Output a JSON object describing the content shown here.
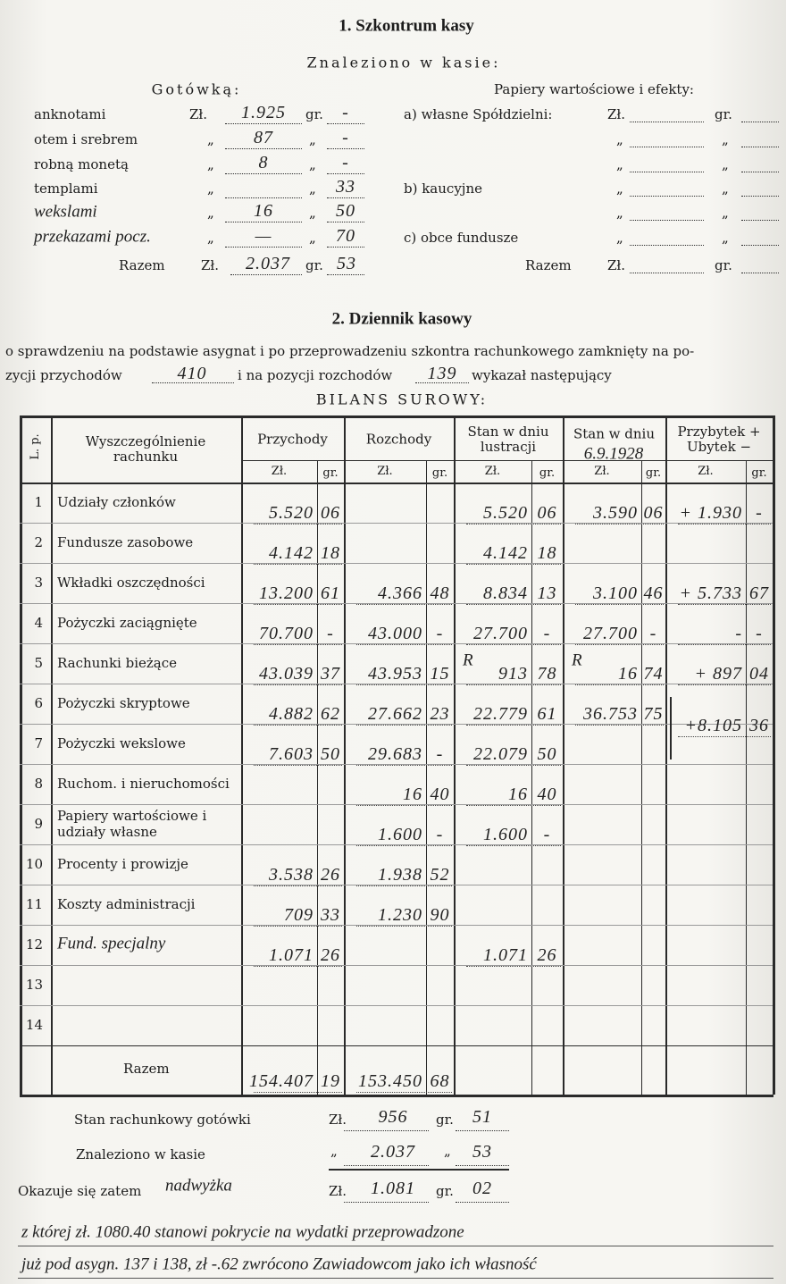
{
  "section1": {
    "title": "1. Szkontrum kasy",
    "subtitle": "Znaleziono w kasie:",
    "cash": {
      "heading": "Gotówką:",
      "rows": [
        {
          "label": "anknotami",
          "zl": "1.925",
          "gr": "-"
        },
        {
          "label": "otem i srebrem",
          "zl": "87",
          "gr": "-"
        },
        {
          "label": "robną monetą",
          "zl": "8",
          "gr": "-"
        },
        {
          "label": "templami",
          "zl": null,
          "gr": "33"
        },
        {
          "label": "wekslami",
          "zl": "16",
          "gr": "50"
        },
        {
          "label": "przekazami pocz.",
          "zl": "—",
          "gr": "70"
        }
      ],
      "total": {
        "label": "Razem",
        "zl": "2.037",
        "gr": "53"
      }
    },
    "securities": {
      "heading": "Papiery wartościowe i efekty:",
      "rows": [
        "a) własne Spółdzielni:",
        "b) kaucyjne",
        "c) obce fundusze"
      ],
      "total": "Razem"
    }
  },
  "units": {
    "zl": "Zł.",
    "gr": "gr.",
    "ditto": "„"
  },
  "section2": {
    "title": "2. Dziennik kasowy",
    "line1": "o sprawdzeniu na podstawie asygnat i po przeprowadzeniu szkontra rachunkowego zamknięty na po-",
    "line2": {
      "before": "zycji przychodów",
      "income_position": "410",
      "middle": "i na pozycji rozchodów",
      "expense_position": "139",
      "after": "wykazał następujący"
    },
    "balance_title": "BILANS SUROWY:"
  },
  "table": {
    "headers": {
      "no": "L. p.",
      "account": "Wyszczególnienie rachunku",
      "columns": [
        "Przychody",
        "Rozchody",
        "Stan w dniu lustracji",
        "Stan w dniu",
        "Przybytek + Ubytek −"
      ],
      "date": "6.9.1928"
    },
    "rows": [
      {
        "no": "1",
        "label": "Udziały członków",
        "cells": [
          {
            "zl": "5.520",
            "gr": "06"
          },
          null,
          {
            "zl": "5.520",
            "gr": "06"
          },
          {
            "zl": "3.590",
            "gr": "06"
          },
          {
            "zl": "+ 1.930",
            "gr": "-"
          }
        ]
      },
      {
        "no": "2",
        "label": "Fundusze zasobowe",
        "cells": [
          {
            "zl": "4.142",
            "gr": "18"
          },
          null,
          {
            "zl": "4.142",
            "gr": "18"
          },
          null,
          null
        ]
      },
      {
        "no": "3",
        "label": "Wkładki oszczędności",
        "cells": [
          {
            "zl": "13.200",
            "gr": "61"
          },
          {
            "zl": "4.366",
            "gr": "48"
          },
          {
            "zl": "8.834",
            "gr": "13"
          },
          {
            "zl": "3.100",
            "gr": "46"
          },
          {
            "zl": "+ 5.733",
            "gr": "67"
          }
        ]
      },
      {
        "no": "4",
        "label": "Pożyczki zaciągnięte",
        "cells": [
          {
            "zl": "70.700",
            "gr": "-"
          },
          {
            "zl": "43.000",
            "gr": "-"
          },
          {
            "zl": "27.700",
            "gr": "-"
          },
          {
            "zl": "27.700",
            "gr": "-"
          },
          {
            "zl": "-",
            "gr": "-"
          }
        ]
      },
      {
        "no": "5",
        "label": "Rachunki bieżące",
        "cells": [
          {
            "zl": "43.039",
            "gr": "37"
          },
          {
            "zl": "43.953",
            "gr": "15"
          },
          {
            "mark": "R",
            "zl": "913",
            "gr": "78"
          },
          {
            "mark": "R",
            "zl": "16",
            "gr": "74"
          },
          {
            "zl": "+ 897",
            "gr": "04"
          }
        ]
      },
      {
        "no": "6",
        "label": "Pożyczki skryptowe",
        "cells": [
          {
            "zl": "4.882",
            "gr": "62"
          },
          {
            "zl": "27.662",
            "gr": "23"
          },
          {
            "zl": "22.779",
            "gr": "61"
          },
          {
            "zl": "36.753",
            "gr": "75"
          },
          null
        ]
      },
      {
        "no": "7",
        "label": "Pożyczki wekslowe",
        "cells": [
          {
            "zl": "7.603",
            "gr": "50"
          },
          {
            "zl": "29.683",
            "gr": "-"
          },
          {
            "zl": "22.079",
            "gr": "50"
          },
          null,
          {
            "zl": "+8.105",
            "gr": "36"
          }
        ]
      },
      {
        "no": "8",
        "label": "Ruchom. i nieruchomości",
        "cells": [
          null,
          {
            "zl": "16",
            "gr": "40"
          },
          {
            "zl": "16",
            "gr": "40"
          },
          null,
          null
        ]
      },
      {
        "no": "9",
        "label": "Papiery wartościowe i udziały własne",
        "cells": [
          null,
          {
            "zl": "1.600",
            "gr": "-"
          },
          {
            "zl": "1.600",
            "gr": "-"
          },
          null,
          null
        ]
      },
      {
        "no": "10",
        "label": "Procenty i prowizje",
        "cells": [
          {
            "zl": "3.538",
            "gr": "26"
          },
          {
            "zl": "1.938",
            "gr": "52"
          },
          null,
          null,
          null
        ]
      },
      {
        "no": "11",
        "label": "Koszty administracji",
        "cells": [
          {
            "zl": "709",
            "gr": "33"
          },
          {
            "zl": "1.230",
            "gr": "90"
          },
          null,
          null,
          null
        ]
      },
      {
        "no": "12",
        "label": "Fund. specjalny",
        "cells": [
          {
            "zl": "1.071",
            "gr": "26"
          },
          null,
          {
            "zl": "1.071",
            "gr": "26"
          },
          null,
          null
        ]
      },
      {
        "no": "13",
        "label": null,
        "cells": [
          null,
          null,
          null,
          null,
          null
        ]
      },
      {
        "no": "14",
        "label": null,
        "cells": [
          null,
          null,
          null,
          null,
          null
        ]
      }
    ],
    "total": {
      "label": "Razem",
      "cells": [
        {
          "zl": "154.407",
          "gr": "19"
        },
        {
          "zl": "153.450",
          "gr": "68"
        }
      ]
    }
  },
  "summary": {
    "book_cash": {
      "label": "Stan rachunkowy gotówki",
      "zl": "956",
      "gr": "51"
    },
    "found": {
      "label": "Znaleziono w kasie",
      "zl": "2.037",
      "gr": "53"
    },
    "result": {
      "label": "Okazuje się zatem",
      "kind": "nadwyżka",
      "zl": "1.081",
      "gr": "02"
    },
    "note": [
      "z której zł. 1080.40 stanowi pokrycie na wydatki przeprowadzone",
      "już pod asygn. 137 i 138, zł -.62 zwrócono Zawiadowcom jako ich własność"
    ]
  }
}
